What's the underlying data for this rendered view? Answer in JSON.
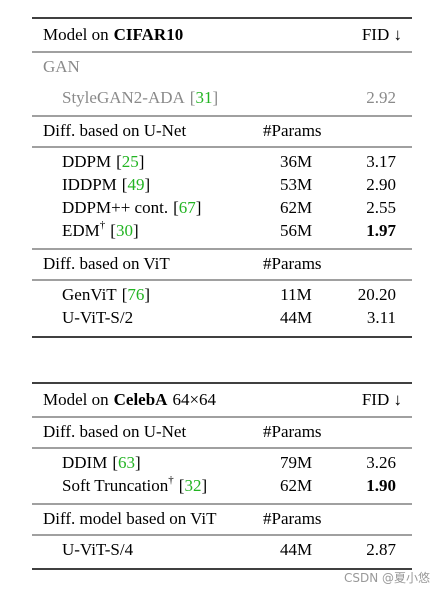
{
  "tables": [
    {
      "header": {
        "prefix": "Model on",
        "dataset": "CIFAR10",
        "metric": "FID ↓"
      },
      "sections": [
        {
          "label": "GAN",
          "gray": true,
          "rows": [
            {
              "name": "StyleGAN2-ADA",
              "cite": "[31]",
              "fid": "2.92"
            }
          ]
        },
        {
          "label": "Diff. based on U-Net",
          "params_header": "#Params",
          "rows": [
            {
              "name": "DDPM",
              "cite": "[25]",
              "params": "36M",
              "fid": "3.17"
            },
            {
              "name": "IDDPM",
              "cite": "[49]",
              "params": "53M",
              "fid": "2.90"
            },
            {
              "name": "DDPM++ cont.",
              "cite": "[67]",
              "params": "62M",
              "fid": "2.55"
            },
            {
              "name": "EDM",
              "sup": "†",
              "cite": "[30]",
              "params": "56M",
              "fid": "1.97",
              "bold": true
            }
          ]
        },
        {
          "label": "Diff. based on ViT",
          "params_header": "#Params",
          "rows": [
            {
              "name": "GenViT",
              "cite": "[76]",
              "params": "11M",
              "fid": "20.20"
            },
            {
              "name": "U-ViT-S/2",
              "params": "44M",
              "fid": "3.11"
            }
          ]
        }
      ]
    },
    {
      "header": {
        "prefix": "Model on",
        "dataset": "CelebA",
        "suffix": "64×64",
        "metric": "FID ↓"
      },
      "sections": [
        {
          "label": "Diff. based on U-Net",
          "params_header": "#Params",
          "rows": [
            {
              "name": "DDIM",
              "cite": "[63]",
              "params": "79M",
              "fid": "3.26"
            },
            {
              "name": "Soft Truncation",
              "sup": "†",
              "cite": "[32]",
              "params": "62M",
              "fid": "1.90",
              "bold": true
            }
          ]
        },
        {
          "label": "Diff. model based on ViT",
          "params_header": "#Params",
          "rows": [
            {
              "name": "U-ViT-S/4",
              "params": "44M",
              "fid": "2.87"
            }
          ]
        }
      ]
    }
  ],
  "watermark": "CSDN @夏小悠"
}
